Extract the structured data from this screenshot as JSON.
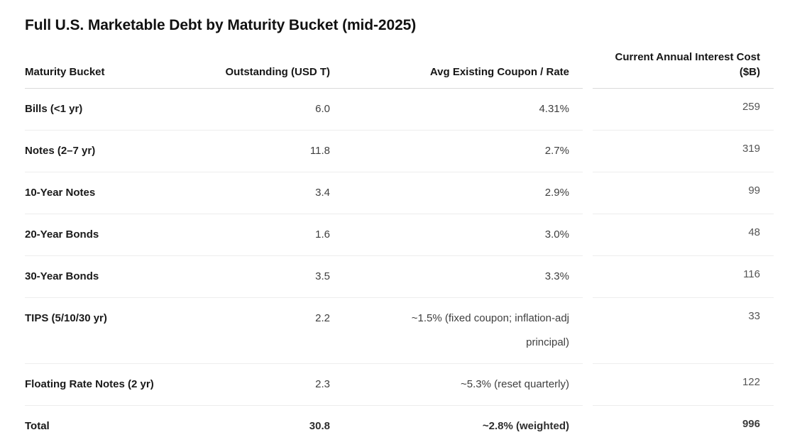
{
  "chart_data": {
    "type": "table",
    "title": "Full U.S. Marketable Debt by Maturity Bucket (mid-2025)",
    "columns": [
      {
        "label": "Maturity Bucket",
        "align": "left"
      },
      {
        "label": "Outstanding (USD T)",
        "align": "right"
      },
      {
        "label": "Avg Existing Coupon / Rate",
        "align": "right"
      },
      {
        "label": "Current Annual Interest Cost ($B)",
        "align": "right"
      }
    ],
    "rows": [
      [
        "Bills (<1 yr)",
        "6.0",
        "4.31%",
        "259"
      ],
      [
        "Notes (2–7 yr)",
        "11.8",
        "2.7%",
        "319"
      ],
      [
        "10-Year Notes",
        "3.4",
        "2.9%",
        "99"
      ],
      [
        "20-Year Bonds",
        "1.6",
        "3.0%",
        "48"
      ],
      [
        "30-Year Bonds",
        "3.5",
        "3.3%",
        "116"
      ],
      [
        "TIPS (5/10/30 yr)",
        "2.2",
        "~1.5% (fixed coupon; inflation-adj principal)",
        "33"
      ],
      [
        "Floating Rate Notes (2 yr)",
        "2.3",
        "~5.3% (reset quarterly)",
        "122"
      ]
    ],
    "total_row": [
      "Total",
      "30.8",
      "~2.8% (weighted)",
      "996"
    ],
    "layout": {
      "grid": "horizontal-row-separators",
      "legend": "none",
      "outstanding_total_usd_t": 30.8,
      "interest_cost_total_b": 996
    }
  },
  "colors": {
    "background": "#ffffff",
    "text_primary": "#161616",
    "text_numeric": "#3f3f3f",
    "header_border": "#d9d9d9",
    "row_border": "#ededed"
  }
}
